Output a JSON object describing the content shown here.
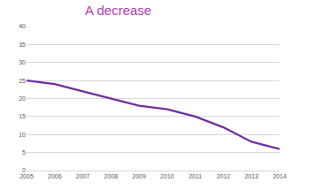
{
  "chart_data": {
    "type": "line",
    "title": "A decrease",
    "categories": [
      "2005",
      "2006",
      "2007",
      "2008",
      "2009",
      "2010",
      "2011",
      "2012",
      "2013",
      "2014"
    ],
    "values": [
      25,
      24,
      22,
      20,
      18,
      17,
      15,
      12,
      8,
      6
    ],
    "color": "#7030a0",
    "ylim": [
      0,
      40
    ],
    "yticks": [
      0,
      5,
      10,
      15,
      20,
      25,
      30,
      35,
      40
    ],
    "grid": true
  }
}
